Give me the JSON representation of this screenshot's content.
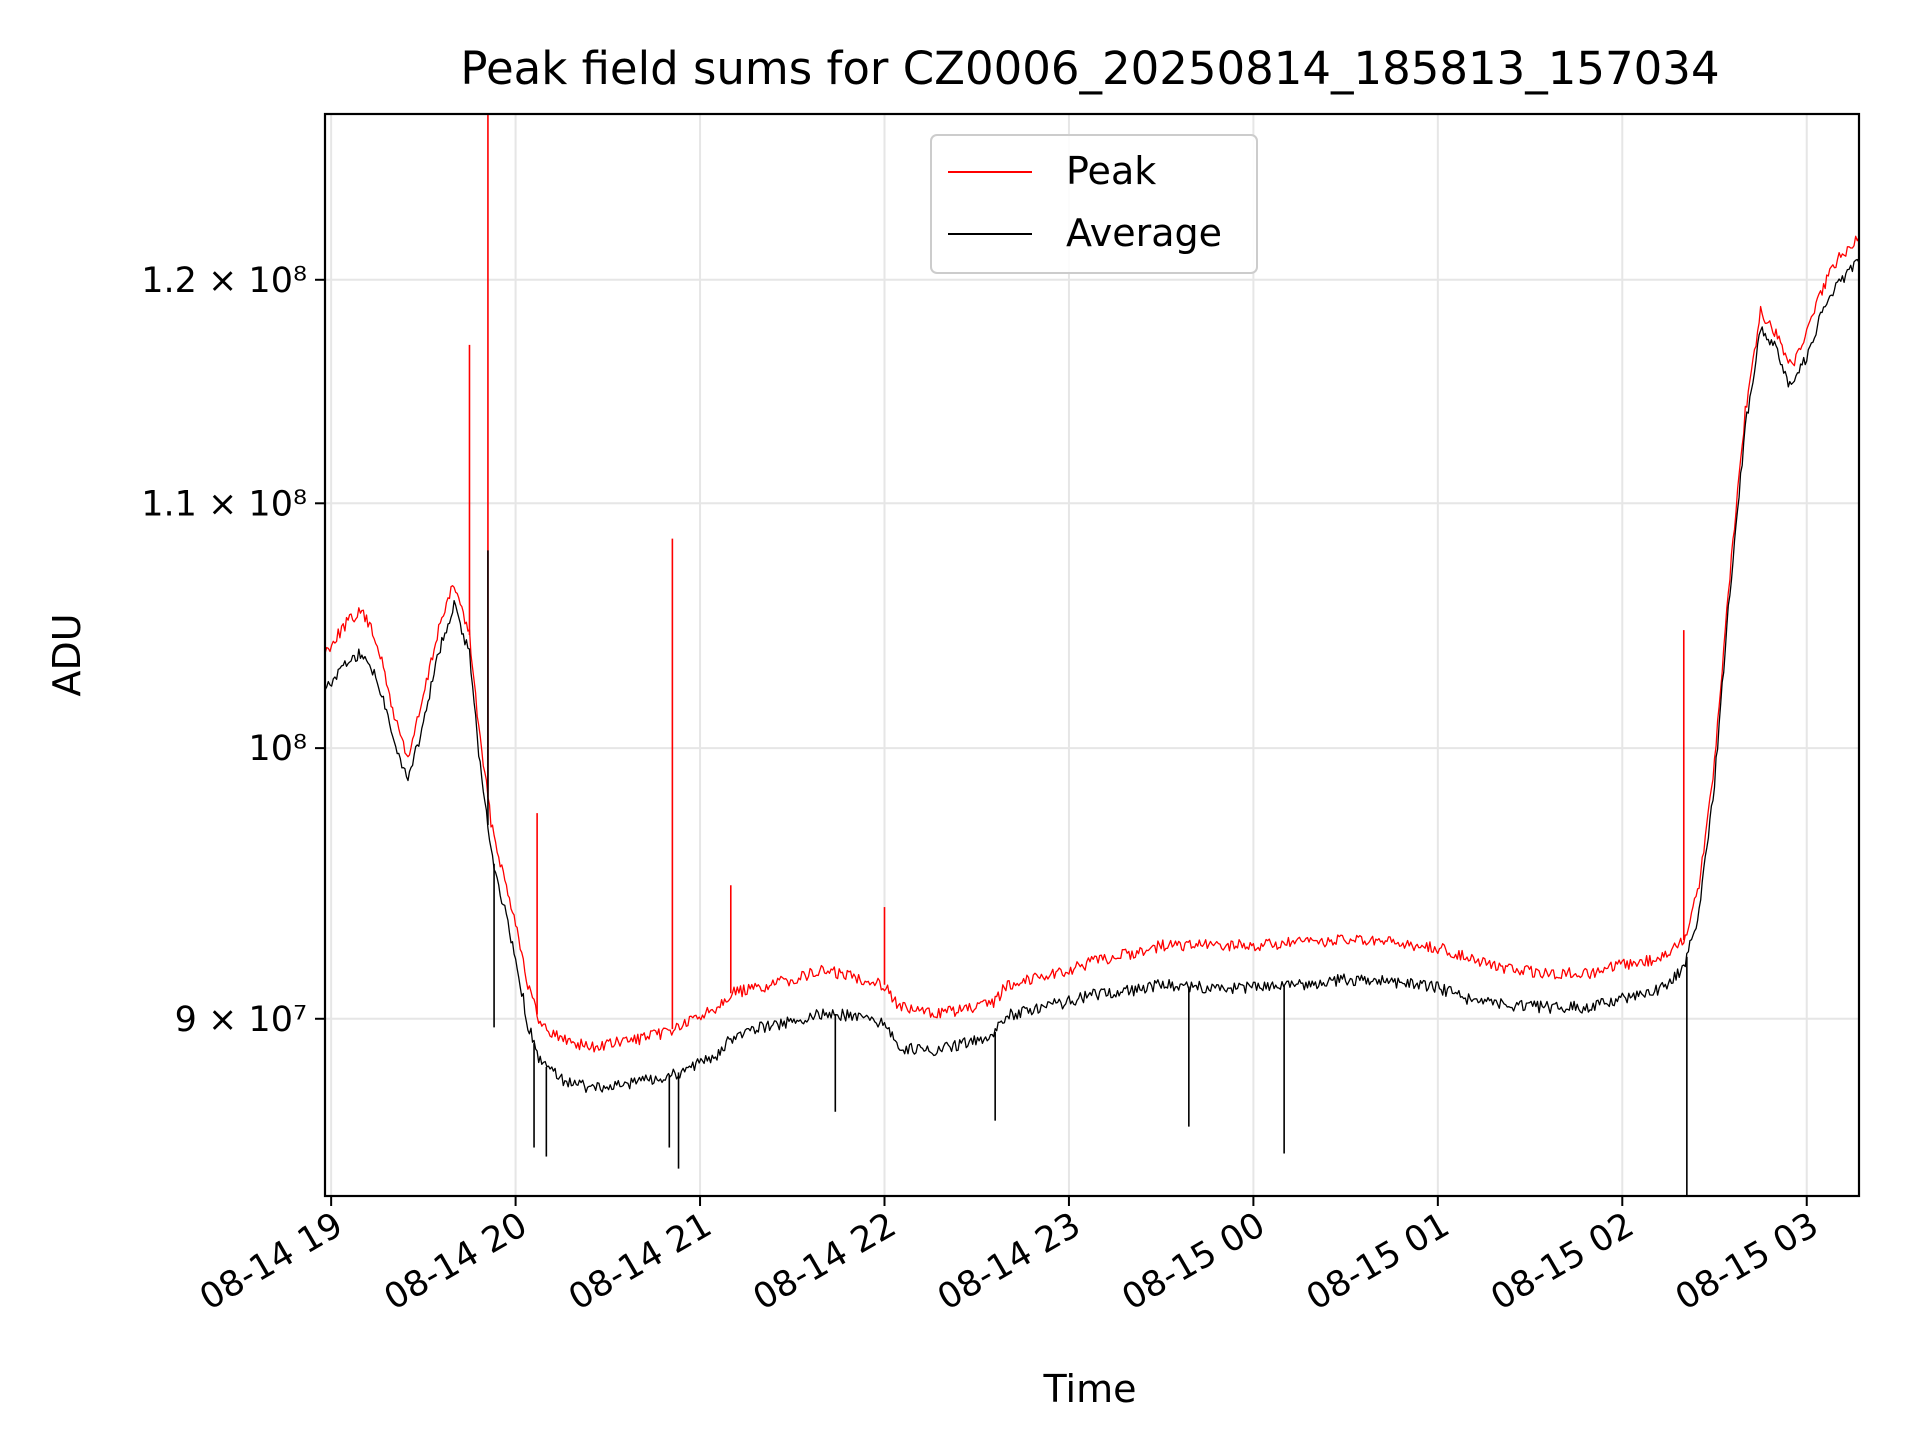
{
  "chart_data": {
    "type": "line",
    "title": "Peak field sums for CZ0006_20250814_185813_157034",
    "xlabel": "Time",
    "ylabel": "ADU",
    "y_scale": "log",
    "xlim": [
      "2025-08-14 18:58",
      "2025-08-15 03:17"
    ],
    "ylim": [
      84000000,
      128000000
    ],
    "x_ticks": [
      {
        "value": "2025-08-14 19:00",
        "label": "08-14 19"
      },
      {
        "value": "2025-08-14 20:00",
        "label": "08-14 20"
      },
      {
        "value": "2025-08-14 21:00",
        "label": "08-14 21"
      },
      {
        "value": "2025-08-14 22:00",
        "label": "08-14 22"
      },
      {
        "value": "2025-08-14 23:00",
        "label": "08-14 23"
      },
      {
        "value": "2025-08-15 00:00",
        "label": "08-15 00"
      },
      {
        "value": "2025-08-15 01:00",
        "label": "08-15 01"
      },
      {
        "value": "2025-08-15 02:00",
        "label": "08-15 02"
      },
      {
        "value": "2025-08-15 03:00",
        "label": "08-15 03"
      }
    ],
    "y_ticks": [
      {
        "value": 90000000,
        "label": "9 × 10⁷"
      },
      {
        "value": 100000000,
        "label": "10⁸"
      },
      {
        "value": 110000000,
        "label": "1.1 × 10⁸"
      },
      {
        "value": 120000000,
        "label": "1.2 × 10⁸"
      }
    ],
    "grid": true,
    "legend_position": "upper center",
    "series": [
      {
        "name": "Peak",
        "color": "#ff0000",
        "x": [
          "2025-08-14 18:58",
          "2025-08-14 19:05",
          "2025-08-14 19:10",
          "2025-08-14 19:15",
          "2025-08-14 19:20",
          "2025-08-14 19:25",
          "2025-08-14 19:30",
          "2025-08-14 19:35",
          "2025-08-14 19:40",
          "2025-08-14 19:45",
          "2025-08-14 19:48",
          "2025-08-14 19:52",
          "2025-08-14 19:56",
          "2025-08-14 20:00",
          "2025-08-14 20:04",
          "2025-08-14 20:08",
          "2025-08-14 20:15",
          "2025-08-14 20:25",
          "2025-08-14 20:35",
          "2025-08-14 20:45",
          "2025-08-14 20:55",
          "2025-08-14 21:05",
          "2025-08-14 21:10",
          "2025-08-14 21:20",
          "2025-08-14 21:30",
          "2025-08-14 21:40",
          "2025-08-14 21:50",
          "2025-08-14 22:00",
          "2025-08-14 22:05",
          "2025-08-14 22:15",
          "2025-08-14 22:25",
          "2025-08-14 22:35",
          "2025-08-14 22:40",
          "2025-08-14 22:50",
          "2025-08-14 23:00",
          "2025-08-14 23:10",
          "2025-08-14 23:20",
          "2025-08-14 23:30",
          "2025-08-14 23:45",
          "2025-08-15 00:00",
          "2025-08-15 00:15",
          "2025-08-15 00:30",
          "2025-08-15 00:45",
          "2025-08-15 01:00",
          "2025-08-15 01:10",
          "2025-08-15 01:20",
          "2025-08-15 01:35",
          "2025-08-15 01:50",
          "2025-08-15 02:00",
          "2025-08-15 02:10",
          "2025-08-15 02:15",
          "2025-08-15 02:20",
          "2025-08-15 02:25",
          "2025-08-15 02:30",
          "2025-08-15 02:35",
          "2025-08-15 02:40",
          "2025-08-15 02:45",
          "2025-08-15 02:50",
          "2025-08-15 02:55",
          "2025-08-15 03:00",
          "2025-08-15 03:05",
          "2025-08-15 03:10",
          "2025-08-15 03:17"
        ],
        "y": [
          103800000,
          105000000,
          105500000,
          104200000,
          101500000,
          99600000,
          102000000,
          104800000,
          106600000,
          104500000,
          100800000,
          97200000,
          95200000,
          93500000,
          91200000,
          89800000,
          89300000,
          89000000,
          89200000,
          89400000,
          89800000,
          90400000,
          90900000,
          91100000,
          91400000,
          91700000,
          91500000,
          91200000,
          90400000,
          90200000,
          90300000,
          90500000,
          91200000,
          91500000,
          91700000,
          92100000,
          92300000,
          92600000,
          92600000,
          92600000,
          92700000,
          92800000,
          92700000,
          92500000,
          92200000,
          91800000,
          91600000,
          91600000,
          91900000,
          92100000,
          92300000,
          92800000,
          94800000,
          99500000,
          107000000,
          114000000,
          118500000,
          117500000,
          116000000,
          117500000,
          119500000,
          121000000,
          122000000
        ],
        "spikes": [
          {
            "x": "2025-08-14 19:45",
            "y": 117000000
          },
          {
            "x": "2025-08-14 19:51",
            "y": 128000000
          },
          {
            "x": "2025-08-14 20:51",
            "y": 108500000
          },
          {
            "x": "2025-08-14 20:07",
            "y": 97500000
          },
          {
            "x": "2025-08-14 21:10",
            "y": 94800000
          },
          {
            "x": "2025-08-14 22:00",
            "y": 94000000
          },
          {
            "x": "2025-08-15 02:20",
            "y": 104700000
          }
        ]
      },
      {
        "name": "Average",
        "color": "#000000",
        "x": [
          "2025-08-14 18:58",
          "2025-08-14 19:05",
          "2025-08-14 19:10",
          "2025-08-14 19:15",
          "2025-08-14 19:20",
          "2025-08-14 19:25",
          "2025-08-14 19:30",
          "2025-08-14 19:35",
          "2025-08-14 19:40",
          "2025-08-14 19:45",
          "2025-08-14 19:48",
          "2025-08-14 19:52",
          "2025-08-14 19:56",
          "2025-08-14 20:00",
          "2025-08-14 20:04",
          "2025-08-14 20:08",
          "2025-08-14 20:15",
          "2025-08-14 20:25",
          "2025-08-14 20:35",
          "2025-08-14 20:45",
          "2025-08-14 20:55",
          "2025-08-14 21:05",
          "2025-08-14 21:10",
          "2025-08-14 21:20",
          "2025-08-14 21:30",
          "2025-08-14 21:40",
          "2025-08-14 21:50",
          "2025-08-14 22:00",
          "2025-08-14 22:05",
          "2025-08-14 22:15",
          "2025-08-14 22:25",
          "2025-08-14 22:35",
          "2025-08-14 22:40",
          "2025-08-14 22:50",
          "2025-08-14 23:00",
          "2025-08-14 23:10",
          "2025-08-14 23:20",
          "2025-08-14 23:30",
          "2025-08-14 23:45",
          "2025-08-15 00:00",
          "2025-08-15 00:15",
          "2025-08-15 00:30",
          "2025-08-15 00:45",
          "2025-08-15 01:00",
          "2025-08-15 01:10",
          "2025-08-15 01:20",
          "2025-08-15 01:35",
          "2025-08-15 01:50",
          "2025-08-15 02:00",
          "2025-08-15 02:10",
          "2025-08-15 02:15",
          "2025-08-15 02:20",
          "2025-08-15 02:25",
          "2025-08-15 02:30",
          "2025-08-15 02:35",
          "2025-08-15 02:40",
          "2025-08-15 02:45",
          "2025-08-15 02:50",
          "2025-08-15 02:55",
          "2025-08-15 03:00",
          "2025-08-15 03:05",
          "2025-08-15 03:10",
          "2025-08-15 03:17"
        ],
        "y": [
          102300000,
          103400000,
          103800000,
          102800000,
          100500000,
          98700000,
          101000000,
          103800000,
          105800000,
          103700000,
          99900000,
          96100000,
          94100000,
          92200000,
          89800000,
          88500000,
          87900000,
          87600000,
          87700000,
          87900000,
          88200000,
          88700000,
          89300000,
          89700000,
          89900000,
          90200000,
          90100000,
          89800000,
          89000000,
          88900000,
          89100000,
          89400000,
          90100000,
          90400000,
          90600000,
          90900000,
          91000000,
          91200000,
          91100000,
          91100000,
          91200000,
          91400000,
          91300000,
          91100000,
          90700000,
          90500000,
          90400000,
          90400000,
          90700000,
          90900000,
          91300000,
          91800000,
          93800000,
          98700000,
          106300000,
          113300000,
          117800000,
          116800000,
          115000000,
          116500000,
          118500000,
          119800000,
          120800000
        ],
        "spikes": [
          {
            "x": "2025-08-14 19:51",
            "y": 108000000
          },
          {
            "x": "2025-08-14 19:53",
            "y": 89700000
          },
          {
            "x": "2025-08-14 20:06",
            "y": 85600000
          },
          {
            "x": "2025-08-14 20:10",
            "y": 85300000
          },
          {
            "x": "2025-08-14 20:50",
            "y": 85600000
          },
          {
            "x": "2025-08-14 20:53",
            "y": 84900000
          },
          {
            "x": "2025-08-14 21:44",
            "y": 86800000
          },
          {
            "x": "2025-08-14 22:36",
            "y": 86500000
          },
          {
            "x": "2025-08-14 23:39",
            "y": 86300000
          },
          {
            "x": "2025-08-15 00:10",
            "y": 85400000
          },
          {
            "x": "2025-08-15 02:21",
            "y": 84000000
          }
        ]
      }
    ]
  }
}
